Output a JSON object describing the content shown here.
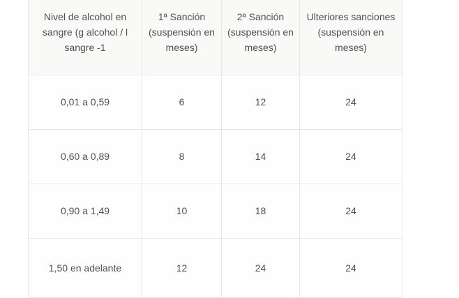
{
  "page": {
    "background": "#ffffff"
  },
  "table": {
    "headers": [
      "Nivel de alcohol en sangre (g alcohol / l sangre -1",
      "1ª Sanción (suspensión en meses)",
      "2ª Sanción (suspensión en meses)",
      "Ulteriores sanciones (suspensión en meses)"
    ],
    "rows": [
      [
        "0,01 a 0,59",
        "6",
        "12",
        "24"
      ],
      [
        "0,60 a 0,89",
        "8",
        "14",
        "24"
      ],
      [
        "0,90 a 1,49",
        "10",
        "18",
        "24"
      ],
      [
        "1,50 en adelante",
        "12",
        "24",
        "24"
      ]
    ],
    "colors": {
      "border": "#e8e7e4",
      "header_background": "#f9f9f7",
      "row_background": "#fefefe",
      "text": "#4e5054"
    }
  }
}
